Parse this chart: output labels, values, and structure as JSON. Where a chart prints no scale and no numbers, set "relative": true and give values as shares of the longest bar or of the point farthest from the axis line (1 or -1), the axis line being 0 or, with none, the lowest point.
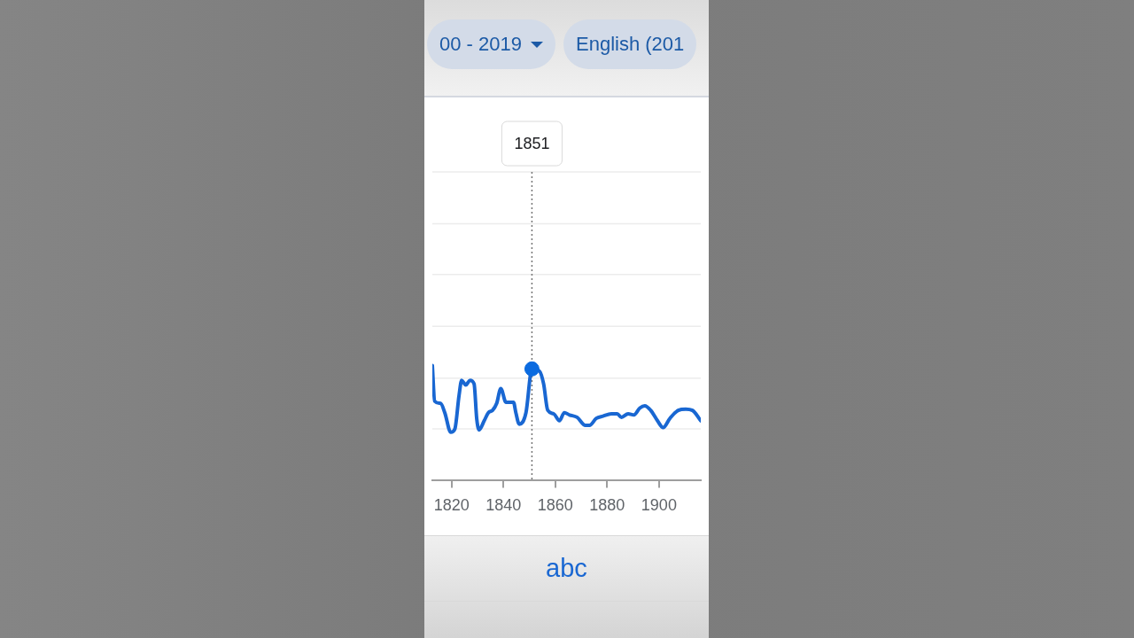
{
  "chart_data": {
    "type": "line",
    "relative": true,
    "x": [
      1812.6,
      1813.5,
      1815.8,
      1817.4,
      1819.7,
      1821.3,
      1822.9,
      1823.9,
      1825.5,
      1827.1,
      1828.7,
      1829.7,
      1830.6,
      1832.6,
      1834.2,
      1835.8,
      1837.4,
      1839,
      1841,
      1843.9,
      1844.8,
      1846.1,
      1848.7,
      1851,
      1853.9,
      1855.5,
      1857.1,
      1859.4,
      1861.6,
      1863.5,
      1865.5,
      1868.4,
      1871.6,
      1873.2,
      1875.8,
      1878.4,
      1881.6,
      1883.9,
      1885.5,
      1888.1,
      1890.3,
      1892.6,
      1894.5,
      1896.8,
      1899.4,
      1901.6,
      1904.2,
      1907.4,
      1910.3,
      1912.9,
      1916.1
    ],
    "series": [
      {
        "name": "abc",
        "color": "#1967d2",
        "values": [
          1.0,
          0.69,
          0.67,
          0.59,
          0.42,
          0.45,
          0.74,
          0.87,
          0.83,
          0.87,
          0.84,
          0.54,
          0.44,
          0.52,
          0.59,
          0.61,
          0.67,
          0.8,
          0.68,
          0.68,
          0.59,
          0.49,
          0.59,
          0.97,
          0.95,
          0.84,
          0.61,
          0.58,
          0.52,
          0.59,
          0.57,
          0.55,
          0.48,
          0.48,
          0.54,
          0.56,
          0.58,
          0.58,
          0.55,
          0.58,
          0.57,
          0.63,
          0.65,
          0.61,
          0.52,
          0.46,
          0.54,
          0.61,
          0.62,
          0.61,
          0.52
        ]
      },
      {
        "type": "scatter",
        "color": "#0b6be0",
        "x": [
          1851
        ],
        "values": [
          0.97
        ],
        "marker": "circle"
      }
    ],
    "xlim": [
      1812.6,
      1916.1
    ],
    "xticks": [
      1820,
      1840,
      1860,
      1880,
      1900
    ],
    "legend": "bottom",
    "marker": "none",
    "ref_lines": [
      {
        "axis": "y",
        "value": 0.45,
        "color": "#ececec",
        "line_style": "solid"
      },
      {
        "axis": "y",
        "value": 0.89,
        "color": "#ececec",
        "line_style": "solid"
      },
      {
        "axis": "y",
        "value": 1.34,
        "color": "#ececec",
        "line_style": "solid"
      },
      {
        "axis": "y",
        "value": 1.79,
        "color": "#ececec",
        "line_style": "solid"
      },
      {
        "axis": "y",
        "value": 2.23,
        "color": "#ececec",
        "line_style": "solid"
      },
      {
        "axis": "y",
        "value": 2.68,
        "color": "#ececec",
        "line_style": "solid"
      },
      {
        "axis": "x",
        "value": 1851,
        "line_style": "dotted",
        "color": "#757575"
      }
    ],
    "annotations": [
      "00 - 2019",
      "English (201",
      "1851"
    ]
  }
}
